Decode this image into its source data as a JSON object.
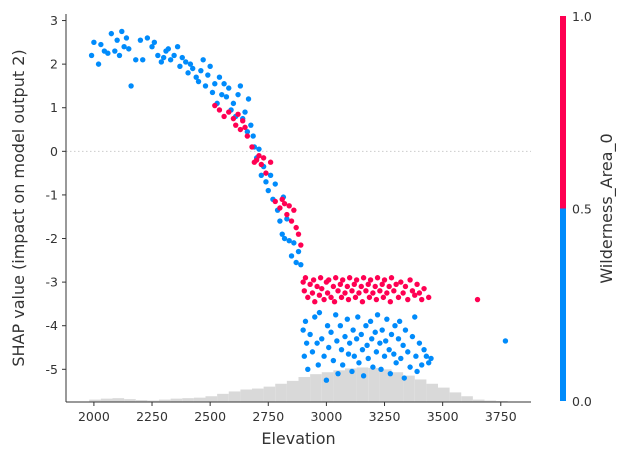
{
  "chart_data": {
    "type": "scatter",
    "xlabel": "Elevation",
    "ylabel": "SHAP value (impact on model output 2)",
    "xlim": [
      1880,
      3880
    ],
    "ylim": [
      -5.75,
      3.15
    ],
    "x_ticks": [
      2000,
      2250,
      2500,
      2750,
      3000,
      3250,
      3500,
      3750
    ],
    "y_ticks": [
      -5,
      -4,
      -3,
      -2,
      -1,
      0,
      1,
      2,
      3
    ],
    "zero_line": true,
    "grid": false,
    "colorbar": {
      "label": "Wilderness_Area_0",
      "ticks": [
        "0.0",
        "0.5",
        "1.0"
      ],
      "low_color": "#008bfb",
      "high_color": "#ff0052"
    },
    "colors": {
      "blue": "#008bfb",
      "red": "#ff0052",
      "histogram": "#d9d9d9"
    },
    "histogram": {
      "bin_start": 1980,
      "bin_width": 50,
      "relative_counts": [
        0.05,
        0.07,
        0.08,
        0.06,
        0.04,
        0.03,
        0.05,
        0.07,
        0.08,
        0.09,
        0.12,
        0.17,
        0.22,
        0.26,
        0.28,
        0.32,
        0.38,
        0.44,
        0.52,
        0.58,
        0.62,
        0.66,
        0.7,
        0.72,
        0.71,
        0.68,
        0.62,
        0.55,
        0.47,
        0.38,
        0.3,
        0.2,
        0.12,
        0.05,
        0.03,
        0.02
      ]
    },
    "series": [
      {
        "value": "0",
        "color": "#008bfb",
        "points": [
          [
            1990,
            2.2
          ],
          [
            2000,
            2.5
          ],
          [
            2020,
            2.0
          ],
          [
            2030,
            2.45
          ],
          [
            2045,
            2.3
          ],
          [
            2060,
            2.25
          ],
          [
            2075,
            2.7
          ],
          [
            2090,
            2.3
          ],
          [
            2100,
            2.55
          ],
          [
            2110,
            2.2
          ],
          [
            2120,
            2.75
          ],
          [
            2130,
            2.4
          ],
          [
            2140,
            2.6
          ],
          [
            2150,
            2.35
          ],
          [
            2160,
            1.5
          ],
          [
            2180,
            2.1
          ],
          [
            2200,
            2.55
          ],
          [
            2210,
            2.1
          ],
          [
            2230,
            2.6
          ],
          [
            2250,
            2.4
          ],
          [
            2260,
            2.5
          ],
          [
            2275,
            2.2
          ],
          [
            2290,
            2.05
          ],
          [
            2300,
            2.15
          ],
          [
            2310,
            2.3
          ],
          [
            2320,
            2.35
          ],
          [
            2330,
            2.1
          ],
          [
            2345,
            2.2
          ],
          [
            2360,
            2.4
          ],
          [
            2370,
            1.95
          ],
          [
            2380,
            2.15
          ],
          [
            2395,
            2.05
          ],
          [
            2405,
            1.8
          ],
          [
            2415,
            2.0
          ],
          [
            2425,
            1.9
          ],
          [
            2440,
            1.7
          ],
          [
            2450,
            1.6
          ],
          [
            2460,
            1.85
          ],
          [
            2470,
            2.1
          ],
          [
            2480,
            1.5
          ],
          [
            2490,
            1.75
          ],
          [
            2500,
            1.95
          ],
          [
            2510,
            1.35
          ],
          [
            2520,
            1.55
          ],
          [
            2530,
            1.1
          ],
          [
            2540,
            1.7
          ],
          [
            2550,
            1.3
          ],
          [
            2560,
            1.55
          ],
          [
            2570,
            1.25
          ],
          [
            2580,
            1.45
          ],
          [
            2590,
            0.95
          ],
          [
            2600,
            1.1
          ],
          [
            2610,
            0.8
          ],
          [
            2620,
            1.3
          ],
          [
            2630,
            1.5
          ],
          [
            2640,
            0.75
          ],
          [
            2650,
            0.9
          ],
          [
            2660,
            0.45
          ],
          [
            2665,
            1.2
          ],
          [
            2675,
            0.6
          ],
          [
            2685,
            0.35
          ],
          [
            2690,
            0.1
          ],
          [
            2700,
            -0.15
          ],
          [
            2710,
            0.05
          ],
          [
            2720,
            -0.55
          ],
          [
            2730,
            -0.35
          ],
          [
            2740,
            -0.7
          ],
          [
            2750,
            -0.9
          ],
          [
            2760,
            -0.55
          ],
          [
            2770,
            -1.1
          ],
          [
            2780,
            -0.75
          ],
          [
            2790,
            -1.35
          ],
          [
            2800,
            -1.6
          ],
          [
            2810,
            -1.9
          ],
          [
            2815,
            -1.05
          ],
          [
            2820,
            -2.0
          ],
          [
            2830,
            -1.55
          ],
          [
            2840,
            -2.05
          ],
          [
            2850,
            -2.4
          ],
          [
            2860,
            -2.1
          ],
          [
            2870,
            -2.55
          ],
          [
            2880,
            -2.3
          ],
          [
            2890,
            -2.6
          ],
          [
            2900,
            -4.1
          ],
          [
            2905,
            -4.7
          ],
          [
            2910,
            -3.9
          ],
          [
            2915,
            -4.4
          ],
          [
            2920,
            -5.0
          ],
          [
            2930,
            -4.2
          ],
          [
            2940,
            -4.6
          ],
          [
            2950,
            -3.8
          ],
          [
            2960,
            -4.4
          ],
          [
            2965,
            -4.9
          ],
          [
            2970,
            -3.7
          ],
          [
            2980,
            -4.3
          ],
          [
            2990,
            -4.7
          ],
          [
            3000,
            -5.25
          ],
          [
            3005,
            -4.0
          ],
          [
            3010,
            -4.5
          ],
          [
            3020,
            -4.15
          ],
          [
            3030,
            -4.8
          ],
          [
            3040,
            -3.75
          ],
          [
            3045,
            -4.35
          ],
          [
            3050,
            -5.1
          ],
          [
            3060,
            -4.0
          ],
          [
            3065,
            -4.55
          ],
          [
            3070,
            -4.9
          ],
          [
            3080,
            -4.25
          ],
          [
            3090,
            -3.85
          ],
          [
            3095,
            -4.65
          ],
          [
            3100,
            -4.4
          ],
          [
            3110,
            -5.05
          ],
          [
            3115,
            -4.1
          ],
          [
            3120,
            -4.7
          ],
          [
            3130,
            -4.3
          ],
          [
            3135,
            -3.8
          ],
          [
            3140,
            -4.85
          ],
          [
            3150,
            -4.2
          ],
          [
            3155,
            -4.55
          ],
          [
            3160,
            -5.15
          ],
          [
            3170,
            -4.0
          ],
          [
            3175,
            -4.45
          ],
          [
            3180,
            -4.75
          ],
          [
            3190,
            -3.9
          ],
          [
            3195,
            -4.3
          ],
          [
            3200,
            -4.95
          ],
          [
            3210,
            -4.15
          ],
          [
            3215,
            -4.6
          ],
          [
            3220,
            -3.75
          ],
          [
            3230,
            -4.4
          ],
          [
            3235,
            -5.0
          ],
          [
            3240,
            -4.1
          ],
          [
            3250,
            -4.7
          ],
          [
            3255,
            -4.35
          ],
          [
            3260,
            -3.85
          ],
          [
            3270,
            -4.55
          ],
          [
            3275,
            -5.1
          ],
          [
            3280,
            -4.2
          ],
          [
            3290,
            -4.65
          ],
          [
            3295,
            -4.0
          ],
          [
            3300,
            -4.85
          ],
          [
            3310,
            -4.3
          ],
          [
            3315,
            -3.9
          ],
          [
            3320,
            -4.75
          ],
          [
            3330,
            -4.45
          ],
          [
            3335,
            -5.2
          ],
          [
            3340,
            -4.1
          ],
          [
            3350,
            -4.6
          ],
          [
            3360,
            -4.95
          ],
          [
            3370,
            -4.25
          ],
          [
            3380,
            -3.8
          ],
          [
            3385,
            -4.7
          ],
          [
            3390,
            -5.05
          ],
          [
            3400,
            -4.4
          ],
          [
            3410,
            -4.9
          ],
          [
            3420,
            -4.55
          ],
          [
            3430,
            -4.7
          ],
          [
            3440,
            -4.85
          ],
          [
            3450,
            -4.75
          ],
          [
            3770,
            -4.35
          ]
        ]
      },
      {
        "value": "1",
        "color": "#ff0052",
        "points": [
          [
            2520,
            1.05
          ],
          [
            2540,
            0.95
          ],
          [
            2560,
            0.8
          ],
          [
            2580,
            0.9
          ],
          [
            2600,
            0.75
          ],
          [
            2610,
            0.6
          ],
          [
            2620,
            0.85
          ],
          [
            2630,
            0.5
          ],
          [
            2640,
            0.7
          ],
          [
            2650,
            0.55
          ],
          [
            2660,
            0.35
          ],
          [
            2680,
            0.1
          ],
          [
            2690,
            -0.25
          ],
          [
            2700,
            -0.2
          ],
          [
            2710,
            -0.1
          ],
          [
            2720,
            -0.3
          ],
          [
            2730,
            -0.15
          ],
          [
            2740,
            -0.5
          ],
          [
            2760,
            -0.25
          ],
          [
            2780,
            -1.15
          ],
          [
            2800,
            -1.3
          ],
          [
            2810,
            -1.1
          ],
          [
            2820,
            -1.2
          ],
          [
            2830,
            -1.45
          ],
          [
            2840,
            -1.25
          ],
          [
            2850,
            -1.6
          ],
          [
            2860,
            -1.35
          ],
          [
            2870,
            -1.75
          ],
          [
            2880,
            -1.9
          ],
          [
            2890,
            -2.15
          ],
          [
            2900,
            -3.0
          ],
          [
            2905,
            -3.2
          ],
          [
            2910,
            -2.9
          ],
          [
            2920,
            -3.35
          ],
          [
            2930,
            -3.05
          ],
          [
            2940,
            -3.25
          ],
          [
            2945,
            -2.95
          ],
          [
            2950,
            -3.45
          ],
          [
            2960,
            -3.1
          ],
          [
            2970,
            -3.3
          ],
          [
            2975,
            -2.9
          ],
          [
            2980,
            -3.15
          ],
          [
            2990,
            -3.4
          ],
          [
            3000,
            -3.0
          ],
          [
            3005,
            -3.25
          ],
          [
            3010,
            -2.95
          ],
          [
            3020,
            -3.35
          ],
          [
            3030,
            -3.1
          ],
          [
            3035,
            -3.45
          ],
          [
            3040,
            -2.9
          ],
          [
            3050,
            -3.2
          ],
          [
            3060,
            -3.05
          ],
          [
            3065,
            -3.35
          ],
          [
            3070,
            -2.95
          ],
          [
            3080,
            -3.25
          ],
          [
            3090,
            -3.1
          ],
          [
            3095,
            -3.4
          ],
          [
            3100,
            -2.9
          ],
          [
            3110,
            -3.2
          ],
          [
            3120,
            -3.05
          ],
          [
            3125,
            -3.35
          ],
          [
            3130,
            -2.95
          ],
          [
            3140,
            -3.25
          ],
          [
            3150,
            -3.1
          ],
          [
            3155,
            -3.45
          ],
          [
            3160,
            -2.9
          ],
          [
            3170,
            -3.2
          ],
          [
            3180,
            -3.05
          ],
          [
            3185,
            -3.35
          ],
          [
            3190,
            -2.95
          ],
          [
            3200,
            -3.25
          ],
          [
            3210,
            -3.1
          ],
          [
            3215,
            -3.4
          ],
          [
            3220,
            -2.9
          ],
          [
            3230,
            -3.2
          ],
          [
            3240,
            -3.05
          ],
          [
            3245,
            -3.35
          ],
          [
            3250,
            -2.95
          ],
          [
            3260,
            -3.25
          ],
          [
            3270,
            -3.1
          ],
          [
            3275,
            -3.45
          ],
          [
            3280,
            -2.9
          ],
          [
            3290,
            -3.2
          ],
          [
            3300,
            -3.05
          ],
          [
            3310,
            -3.35
          ],
          [
            3320,
            -3.0
          ],
          [
            3330,
            -3.25
          ],
          [
            3340,
            -3.1
          ],
          [
            3350,
            -3.4
          ],
          [
            3360,
            -2.95
          ],
          [
            3370,
            -3.2
          ],
          [
            3380,
            -3.3
          ],
          [
            3390,
            -3.05
          ],
          [
            3400,
            -3.25
          ],
          [
            3410,
            -3.4
          ],
          [
            3420,
            -3.15
          ],
          [
            3440,
            -3.35
          ],
          [
            3650,
            -3.4
          ]
        ]
      }
    ]
  }
}
